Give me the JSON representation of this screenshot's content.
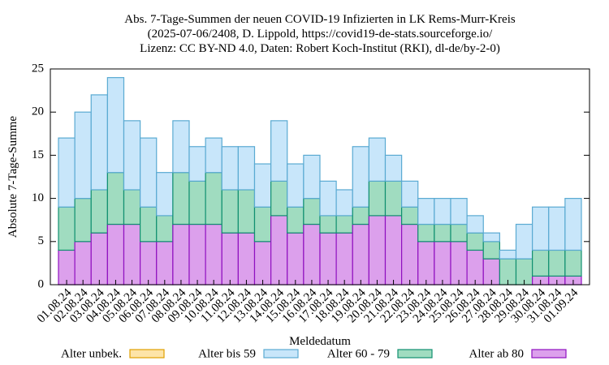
{
  "chart_data": {
    "type": "stacked_bar",
    "title": [
      "Abs. 7-Tage-Summen der neuen COVID-19 Infizierten in LK Rems-Murr-Kreis",
      "(2025-07-06/2408, D. Lippold, https://covid19-de-stats.sourceforge.io/",
      "Lizenz: CC BY-ND 4.0, Daten: Robert Koch-Institut (RKI), dl-de/by-2-0)"
    ],
    "x_label": "Meldedatum",
    "y_label": "Absolute 7-Tage-Summe",
    "categories": [
      "01.08.24",
      "02.08.24",
      "03.08.24",
      "04.08.24",
      "05.08.24",
      "06.08.24",
      "07.08.24",
      "08.08.24",
      "09.08.24",
      "10.08.24",
      "11.08.24",
      "12.08.24",
      "13.08.24",
      "14.08.24",
      "15.08.24",
      "16.08.24",
      "17.08.24",
      "18.08.24",
      "19.08.24",
      "20.08.24",
      "21.08.24",
      "22.08.24",
      "23.08.24",
      "24.08.24",
      "25.08.24",
      "26.08.24",
      "27.08.24",
      "28.08.24",
      "29.08.24",
      "30.08.24",
      "31.08.24",
      "01.09.24"
    ],
    "series": [
      {
        "name": "Alter ab 80",
        "color": "#dca0ec",
        "stroke": "#9010c0",
        "values": [
          4,
          5,
          6,
          7,
          7,
          5,
          5,
          7,
          7,
          7,
          6,
          6,
          5,
          8,
          6,
          7,
          6,
          6,
          7,
          8,
          8,
          7,
          5,
          5,
          5,
          4,
          3,
          0,
          0,
          1,
          1,
          1
        ]
      },
      {
        "name": "Alter 60 - 79",
        "color": "#a0dcc0",
        "stroke": "#109070",
        "values": [
          5,
          5,
          5,
          6,
          4,
          4,
          3,
          6,
          5,
          6,
          5,
          5,
          4,
          4,
          3,
          3,
          2,
          2,
          2,
          4,
          4,
          2,
          2,
          2,
          2,
          2,
          2,
          3,
          3,
          3,
          3,
          3
        ]
      },
      {
        "name": "Alter bis 59",
        "color": "#c8e6fa",
        "stroke": "#5aaad2",
        "values": [
          8,
          10,
          11,
          11,
          8,
          8,
          5,
          6,
          4,
          4,
          5,
          5,
          5,
          7,
          5,
          5,
          4,
          3,
          7,
          5,
          3,
          3,
          3,
          3,
          3,
          2,
          1,
          1,
          4,
          5,
          5,
          6
        ]
      },
      {
        "name": "Alter unbek.",
        "color": "#fde4a8",
        "stroke": "#e0a000",
        "values": [
          0,
          0,
          0,
          0,
          0,
          0,
          0,
          0,
          0,
          0,
          0,
          0,
          0,
          0,
          0,
          0,
          0,
          0,
          0,
          0,
          0,
          0,
          0,
          0,
          0,
          0,
          0,
          0,
          0,
          0,
          0,
          0
        ]
      }
    ],
    "legend_order": [
      3,
      2,
      1,
      0
    ],
    "ylim": [
      0,
      25
    ],
    "yticks": [
      0,
      5,
      10,
      15,
      20,
      25
    ]
  }
}
